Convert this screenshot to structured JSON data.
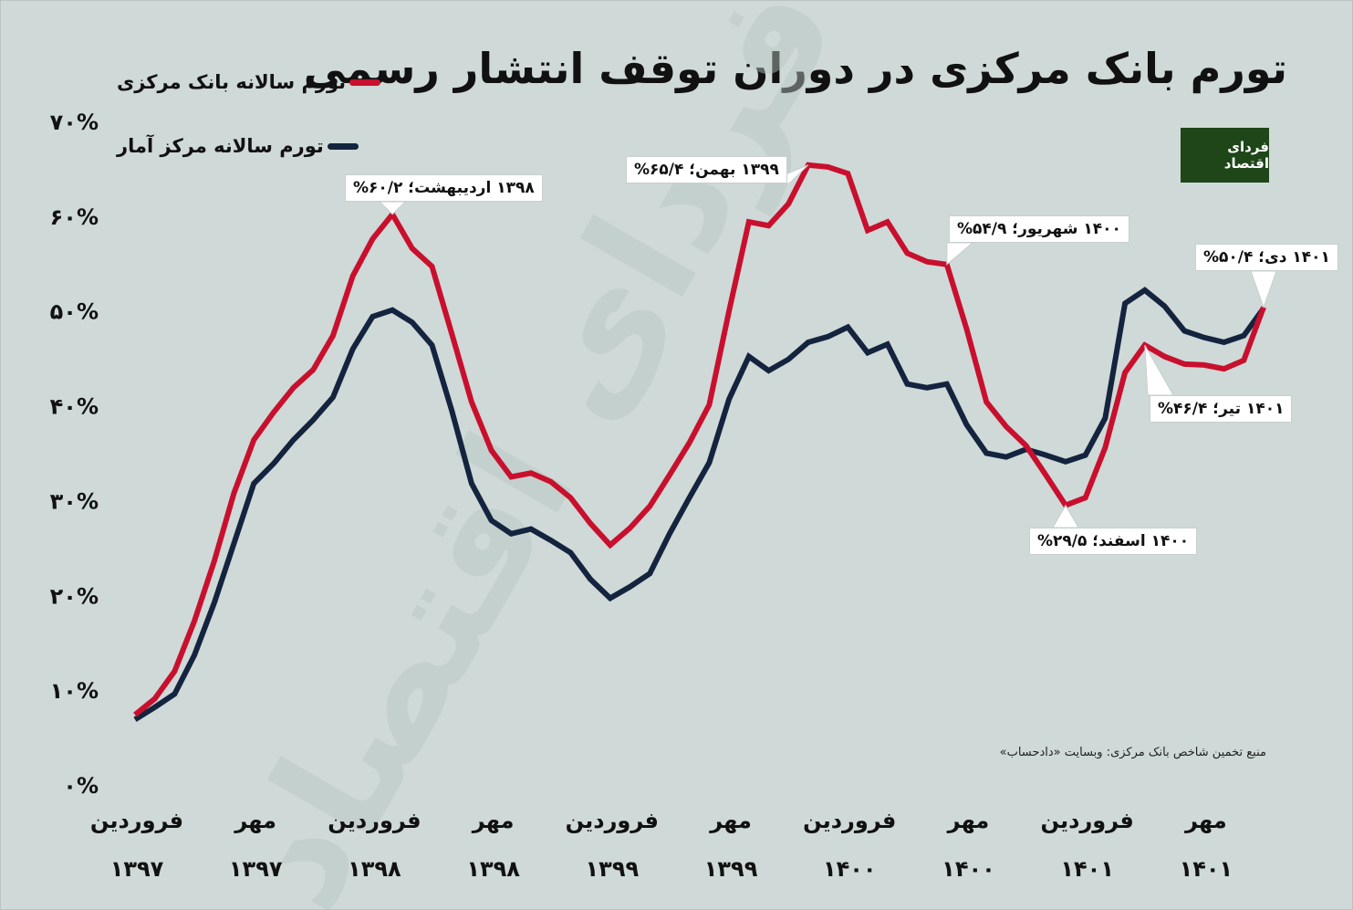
{
  "title": "تورم بانک مرکزی در دوران توقف انتشار رسمی",
  "logo_text": "فردای اقتصاد",
  "source": "منبع تخمین شاخص بانک مرکزی: وبسایت «دادحساب»",
  "chart_data": {
    "type": "line",
    "title": "تورم بانک مرکزی در دوران توقف انتشار رسمی",
    "xlabel": "",
    "ylabel": "",
    "ylim": [
      0,
      70
    ],
    "y_ticks": [
      0,
      10,
      20,
      30,
      40,
      50,
      60,
      70
    ],
    "y_tick_labels": [
      "۰%",
      "۱۰%",
      "۲۰%",
      "۳۰%",
      "۴۰%",
      "۵۰%",
      "۶۰%",
      "۷۰%"
    ],
    "x_start": "فروردین ۱۳۹۷",
    "x_end": "دی ۱۴۰۱",
    "x_tick_index": [
      0,
      6,
      12,
      18,
      24,
      30,
      36,
      42,
      48,
      54
    ],
    "x_tick_labels": [
      [
        "فروردین",
        "۱۳۹۷"
      ],
      [
        "مهر",
        "۱۳۹۷"
      ],
      [
        "فروردین",
        "۱۳۹۸"
      ],
      [
        "مهر",
        "۱۳۹۸"
      ],
      [
        "فروردین",
        "۱۳۹۹"
      ],
      [
        "مهر",
        "۱۳۹۹"
      ],
      [
        "فروردین",
        "۱۴۰۰"
      ],
      [
        "مهر",
        "۱۴۰۰"
      ],
      [
        "فروردین",
        "۱۴۰۱"
      ],
      [
        "مهر",
        "۱۴۰۱"
      ]
    ],
    "grid": false,
    "legend_position": "top-left",
    "series": [
      {
        "name": "تورم سالانه بانک مرکزی",
        "color": "#c8102e",
        "values": [
          7.4,
          9.1,
          12.0,
          17.3,
          23.6,
          30.8,
          36.4,
          39.3,
          41.9,
          43.8,
          47.4,
          53.7,
          57.6,
          60.2,
          56.6,
          54.7,
          47.6,
          40.4,
          35.3,
          32.5,
          32.9,
          32.0,
          30.3,
          27.6,
          25.3,
          27.1,
          29.4,
          32.7,
          36.1,
          40.1,
          50.0,
          59.4,
          59.0,
          61.3,
          65.4,
          65.2,
          64.5,
          58.5,
          59.4,
          56.1,
          55.2,
          54.9,
          48.1,
          40.4,
          37.8,
          35.8,
          32.7,
          29.5,
          30.3,
          35.6,
          43.5,
          46.4,
          45.2,
          44.4,
          44.3,
          43.9,
          44.8,
          50.4
        ]
      },
      {
        "name": "تورم سالانه مرکز آمار",
        "color": "#14243f",
        "values": [
          6.9,
          8.2,
          9.6,
          13.7,
          19.2,
          25.5,
          31.8,
          33.9,
          36.4,
          38.5,
          40.9,
          46.0,
          49.4,
          50.1,
          48.8,
          46.4,
          39.5,
          31.8,
          27.9,
          26.5,
          27.0,
          25.8,
          24.5,
          21.7,
          19.7,
          20.9,
          22.3,
          26.5,
          30.3,
          34.0,
          40.7,
          45.2,
          43.7,
          44.9,
          46.7,
          47.3,
          48.3,
          45.6,
          46.5,
          42.3,
          41.9,
          42.3,
          38.0,
          35.0,
          34.6,
          35.4,
          34.8,
          34.1,
          34.8,
          38.7,
          50.8,
          52.2,
          50.5,
          47.9,
          47.2,
          46.7,
          47.4,
          50.3
        ]
      }
    ],
    "annotations": [
      {
        "index": 13,
        "series": 0,
        "text": "۱۳۹۸ اردیبهشت؛ ۶۰/۲%"
      },
      {
        "index": 34,
        "series": 0,
        "text": "۱۳۹۹ بهمن؛ ۶۵/۴%"
      },
      {
        "index": 41,
        "series": 0,
        "text": "۱۴۰۰ شهریور؛ ۵۴/۹%"
      },
      {
        "index": 47,
        "series": 0,
        "text": "۱۴۰۰ اسفند؛ ۲۹/۵%"
      },
      {
        "index": 51,
        "series": 0,
        "text": "۱۴۰۱ تیر؛ ۴۶/۴%"
      },
      {
        "index": 57,
        "series": 0,
        "text": "۱۴۰۱ دی؛ ۵۰/۴%"
      }
    ]
  }
}
